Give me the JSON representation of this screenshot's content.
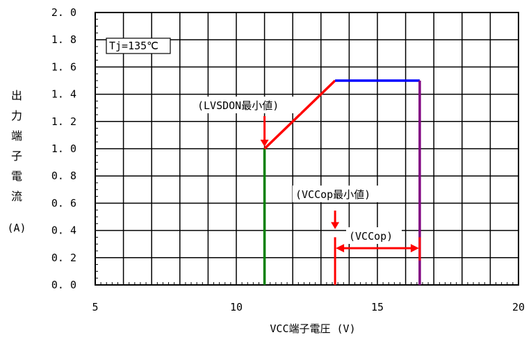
{
  "chart_data": {
    "type": "line",
    "title": "",
    "xlabel": "VCC端子電圧 (V)",
    "ylabel_chars": [
      "出",
      "力",
      "端",
      "子",
      "電",
      "流"
    ],
    "ylabel_unit": "(A)",
    "xlim": [
      5,
      20
    ],
    "ylim": [
      0.0,
      2.0
    ],
    "x_ticks": [
      "5",
      "10",
      "15",
      "20"
    ],
    "y_ticks": [
      "0.0",
      "0.2",
      "0.4",
      "0.6",
      "0.8",
      "1.0",
      "1.2",
      "1.4",
      "1.6",
      "1.8",
      "2.0"
    ],
    "grid": true,
    "grid_x_step": 1,
    "grid_y_step": 0.2,
    "condition_label": "Tj=135℃",
    "series": [
      {
        "color": "#008000",
        "x": [
          11.0,
          11.0
        ],
        "y": [
          0.0,
          1.0
        ]
      },
      {
        "color": "#ff0000",
        "x": [
          11.0,
          13.5
        ],
        "y": [
          1.0,
          1.5
        ]
      },
      {
        "color": "#0000ff",
        "x": [
          13.5,
          16.5
        ],
        "y": [
          1.5,
          1.5
        ]
      },
      {
        "color": "#800080",
        "x": [
          16.5,
          16.5
        ],
        "y": [
          1.5,
          0.0
        ]
      }
    ],
    "annotations": [
      {
        "text": "(LVSDON最小値)",
        "points_to_x": 11.0,
        "points_to_y": 1.0
      },
      {
        "text": "(VCCop最小値)",
        "points_to_x": 13.5,
        "points_to_y": 0.4
      },
      {
        "text": "(VCCop)",
        "range_x": [
          13.5,
          16.5
        ],
        "range_y": 0.27
      }
    ]
  }
}
